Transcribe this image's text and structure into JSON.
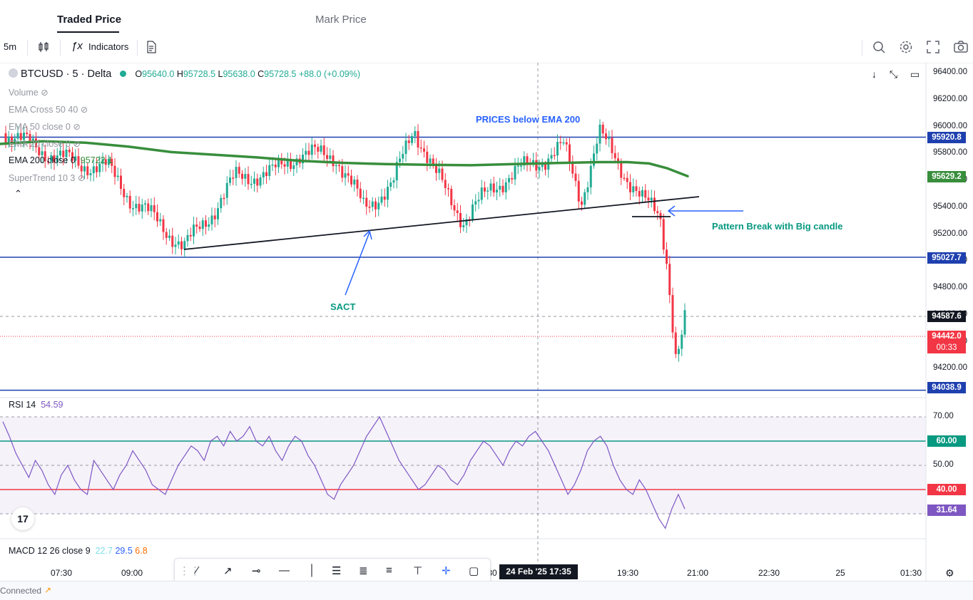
{
  "tabs": {
    "active": "Traded Price",
    "inactive": "Mark Price"
  },
  "toolbar": {
    "interval": "5m",
    "indicators": "Indicators"
  },
  "symbol": {
    "name": "BTCUSD · 5 · Delta",
    "o_label": "O",
    "o": "95640.0",
    "h_label": "H",
    "h": "95728.5",
    "l_label": "L",
    "l": "95638.0",
    "c_label": "C",
    "c": "95728.5",
    "change": "+88.0 (+0.09%)"
  },
  "indicators": {
    "volume": "Volume",
    "ema_cross": "EMA Cross 50 40",
    "ema50": "EMA 50 close 0",
    "ema20": "EMA 20 close 0",
    "ema200_label": "EMA 200 close 0",
    "ema200_value": "95722.1",
    "supertrend": "SuperTrend 10 3"
  },
  "rsi": {
    "label": "RSI",
    "period": "14",
    "value": "54.59"
  },
  "macd": {
    "label": "MACD",
    "params": "12 26 close 9",
    "v1": "22.7",
    "v2": "29.5",
    "v3": "6.8"
  },
  "annotations": {
    "prices_below": "PRICES below EMA 200",
    "pattern_break": "Pattern Break with Big candle",
    "sact": "SACT"
  },
  "price_badges": {
    "b1": "95920.8",
    "b2": "95629.2",
    "b3": "95027.7",
    "b4": "94587.6",
    "b5": "94442.0",
    "b5_timer": "00:33",
    "b6": "94038.9"
  },
  "rsi_badges": {
    "b60": "60.00",
    "b40": "40.00",
    "cur": "31.64"
  },
  "date_tag": "24 Feb '25   17:35",
  "footer": {
    "status": "Connected"
  },
  "colors": {
    "up": "#22ab94",
    "down": "#f23645",
    "ema200": "#388e3c",
    "hline": "#1e40af",
    "rsi": "#7e57c2"
  },
  "chart_data": {
    "type": "candlestick",
    "price_axis": {
      "ticks": [
        96400,
        96200,
        96000,
        95800,
        95600,
        95400,
        95200,
        95000,
        94800,
        94600,
        94400,
        94200
      ]
    },
    "price_tick_labels": [
      "96400.00",
      "96200.00",
      "96000.00",
      "95800.00",
      "95600.00",
      "95400.00",
      "95200.00",
      "95000.00",
      "94800.00",
      "94600.00",
      "94400.00",
      "94200.00"
    ],
    "time_axis": [
      "07:30",
      "09:00",
      "30",
      "19:30",
      "21:00",
      "22:30",
      "25",
      "01:30"
    ],
    "horizontal_levels": [
      95920.8,
      95027.7,
      94038.9
    ],
    "rsi_axis": {
      "ticks": [
        "70.00",
        "60.00",
        "50.00",
        "40.00",
        "30.00"
      ],
      "bands": [
        60,
        40
      ]
    },
    "rsi_values": [
      68,
      62,
      55,
      50,
      45,
      52,
      48,
      42,
      38,
      46,
      50,
      44,
      40,
      38,
      52,
      48,
      44,
      40,
      46,
      50,
      56,
      52,
      48,
      42,
      40,
      38,
      44,
      50,
      54,
      58,
      56,
      52,
      60,
      62,
      58,
      64,
      60,
      62,
      66,
      60,
      58,
      62,
      56,
      52,
      58,
      62,
      60,
      54,
      50,
      44,
      38,
      36,
      42,
      46,
      50,
      56,
      62,
      66,
      70,
      64,
      58,
      52,
      48,
      44,
      40,
      42,
      46,
      50,
      48,
      44,
      42,
      46,
      52,
      56,
      60,
      58,
      54,
      50,
      56,
      60,
      58,
      62,
      64,
      60,
      56,
      50,
      44,
      38,
      42,
      48,
      56,
      60,
      62,
      58,
      50,
      44,
      40,
      38,
      44,
      40,
      34,
      28,
      24,
      32,
      38,
      32
    ]
  }
}
